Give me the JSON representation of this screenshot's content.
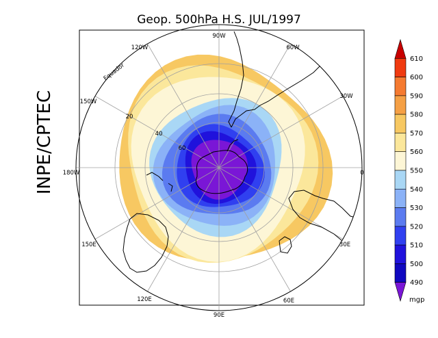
{
  "title": "Geop. 500hPa H.S. JUL/1997",
  "institution": "INPE/CPTEC",
  "colors": {
    "background": "#f5a045",
    "coast": "#000000",
    "grid": "#a0a0a0"
  },
  "map": {
    "projection": "polar-stereographic-south",
    "longitude_labels": [
      {
        "text": "90W"
      },
      {
        "text": "60W"
      },
      {
        "text": "30W"
      },
      {
        "text": "0"
      },
      {
        "text": "30E"
      },
      {
        "text": "60E"
      },
      {
        "text": "90E"
      },
      {
        "text": "120E"
      },
      {
        "text": "150E"
      },
      {
        "text": "180W"
      },
      {
        "text": "150W"
      },
      {
        "text": "120W"
      }
    ],
    "latitude_labels": [
      {
        "text": "Equador"
      },
      {
        "text": "20"
      },
      {
        "text": "40"
      },
      {
        "text": "60"
      }
    ],
    "contour_levels": [
      {
        "value": 580,
        "color": "#f5a045"
      },
      {
        "value": 570,
        "color": "#f7c862"
      },
      {
        "value": 560,
        "color": "#fbe79b"
      },
      {
        "value": 550,
        "color": "#fdf6d6"
      },
      {
        "value": 540,
        "color": "#a9d7f5"
      },
      {
        "value": 530,
        "color": "#8bb2f7"
      },
      {
        "value": 520,
        "color": "#5b7bf0"
      },
      {
        "value": 510,
        "color": "#3040f0"
      },
      {
        "value": 500,
        "color": "#2012dc"
      },
      {
        "value": 490,
        "color": "#7a16d6"
      }
    ]
  },
  "colorbar": {
    "unit": "mgp",
    "levels": [
      "610",
      "600",
      "590",
      "580",
      "570",
      "560",
      "550",
      "540",
      "530",
      "520",
      "510",
      "500",
      "490"
    ],
    "swatches": [
      {
        "color": "#c80000"
      },
      {
        "color": "#f03a10"
      },
      {
        "color": "#f57a30"
      },
      {
        "color": "#f5a045"
      },
      {
        "color": "#f7c862"
      },
      {
        "color": "#fbe79b"
      },
      {
        "color": "#fdf6d6"
      },
      {
        "color": "#a9d7f5"
      },
      {
        "color": "#8bb2f7"
      },
      {
        "color": "#5b7bf0"
      },
      {
        "color": "#3040f0"
      },
      {
        "color": "#2012dc"
      },
      {
        "color": "#1008c0"
      },
      {
        "color": "#7a16d6"
      }
    ]
  }
}
